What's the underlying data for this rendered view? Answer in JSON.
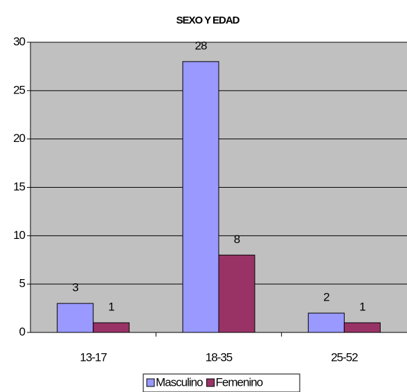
{
  "chart_data": {
    "type": "bar",
    "title": "SEXO Y EDAD",
    "categories": [
      "13-17",
      "18-35",
      "25-52"
    ],
    "series": [
      {
        "name": "Masculino",
        "color": "#9999ff",
        "values": [
          3,
          28,
          2
        ]
      },
      {
        "name": "Femenino",
        "color": "#993366",
        "values": [
          1,
          8,
          1
        ]
      }
    ],
    "ylim": [
      0,
      30
    ],
    "yticks": [
      0,
      5,
      10,
      15,
      20,
      25,
      30
    ],
    "grid": true,
    "legend": "bottom"
  }
}
